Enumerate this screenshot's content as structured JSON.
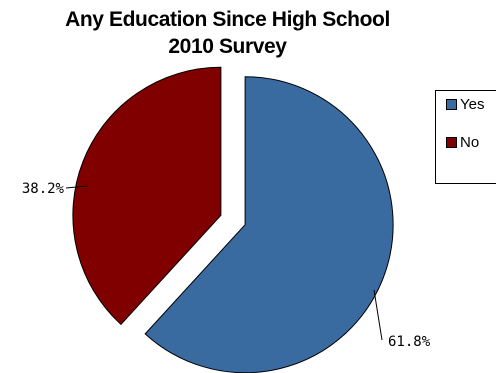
{
  "chart_data": {
    "type": "pie",
    "title": [
      "Any Education Since High School",
      "2010 Survey"
    ],
    "categories": [
      "Yes",
      "No"
    ],
    "values": [
      61.8,
      38.2
    ],
    "labels": [
      "61.8%",
      "38.2%"
    ],
    "colors": [
      "#3a6ba0",
      "#800000"
    ],
    "legend": "right",
    "exploded": true
  }
}
